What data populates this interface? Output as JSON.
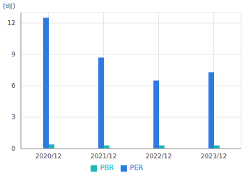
{
  "chart_data": {
    "type": "bar",
    "y_label": "(배)",
    "categories": [
      "2020/12",
      "2021/12",
      "2022/12",
      "2023/12"
    ],
    "series": [
      {
        "name": "PER",
        "color": "#2e7be0",
        "values": [
          12.5,
          8.7,
          6.5,
          7.3
        ]
      },
      {
        "name": "PBR",
        "color": "#1bb8b8",
        "values": [
          0.4,
          0.3,
          0.3,
          0.3
        ]
      }
    ],
    "ylim": [
      0,
      13
    ],
    "yticks": [
      0,
      3,
      6,
      9,
      12
    ],
    "grid": true,
    "legend": "bottom"
  }
}
